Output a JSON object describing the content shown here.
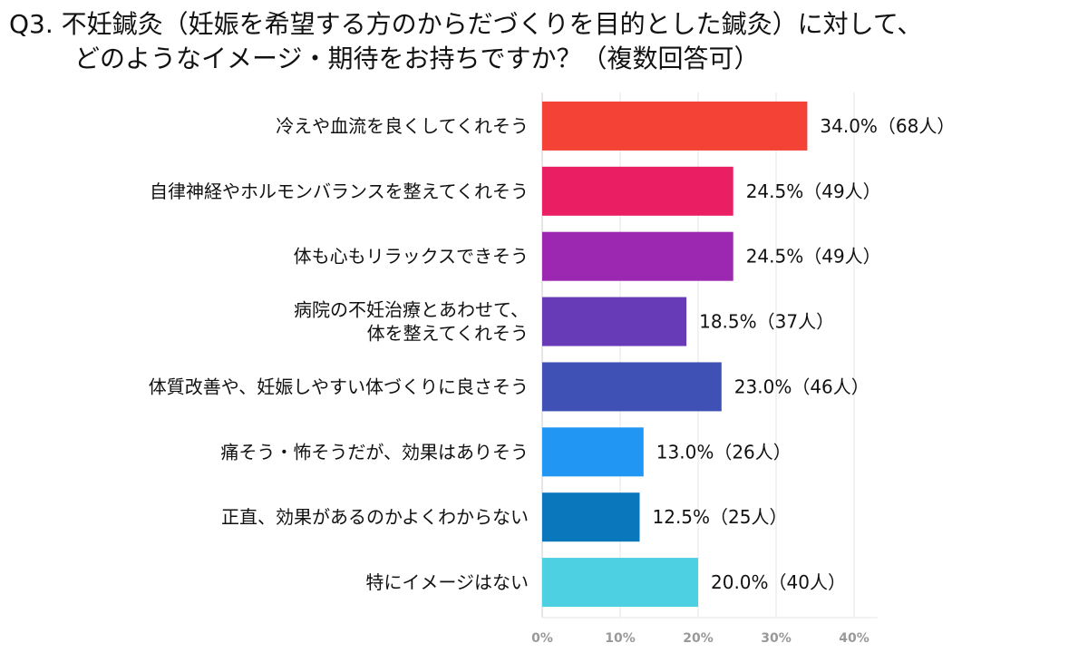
{
  "chart_data": {
    "type": "bar",
    "orientation": "horizontal",
    "title": [
      "Q3. 不妊鍼灸（妊娠を希望する方のからだづくりを目的とした鍼灸）に対して、",
      "どのようなイメージ・期待をお持ちですか？（複数回答可）"
    ],
    "categories": [
      [
        "冷えや血流を良くしてくれそう"
      ],
      [
        "自律神経やホルモンバランスを整えてくれそう"
      ],
      [
        "体も心もリラックスできそう"
      ],
      [
        "病院の不妊治療とあわせて、",
        "体を整えてくれそう"
      ],
      [
        "体質改善や、妊娠しやすい体づくりに良さそう"
      ],
      [
        "痛そう・怖そうだが、効果はありそう"
      ],
      [
        "正直、効果があるのかよくわからない"
      ],
      [
        "特にイメージはない"
      ]
    ],
    "values": [
      34.0,
      24.5,
      24.5,
      18.5,
      23.0,
      13.0,
      12.5,
      20.0
    ],
    "data_labels": [
      "34.0%（68人）",
      "24.5%（49人）",
      "24.5%（49人）",
      "18.5%（37人）",
      "23.0%（46人）",
      "13.0%（26人）",
      "12.5%（25人）",
      "20.0%（40人）"
    ],
    "colors": [
      "#F44336",
      "#E91E63",
      "#9C27B0",
      "#673AB7",
      "#3F51B5",
      "#2196F3",
      "#0A77BD",
      "#4DD0E1"
    ],
    "x_ticks": [
      "0%",
      "10%",
      "20%",
      "30%",
      "40%"
    ],
    "xlim": [
      0,
      43
    ],
    "grid": true,
    "xlabel": "",
    "ylabel": ""
  }
}
